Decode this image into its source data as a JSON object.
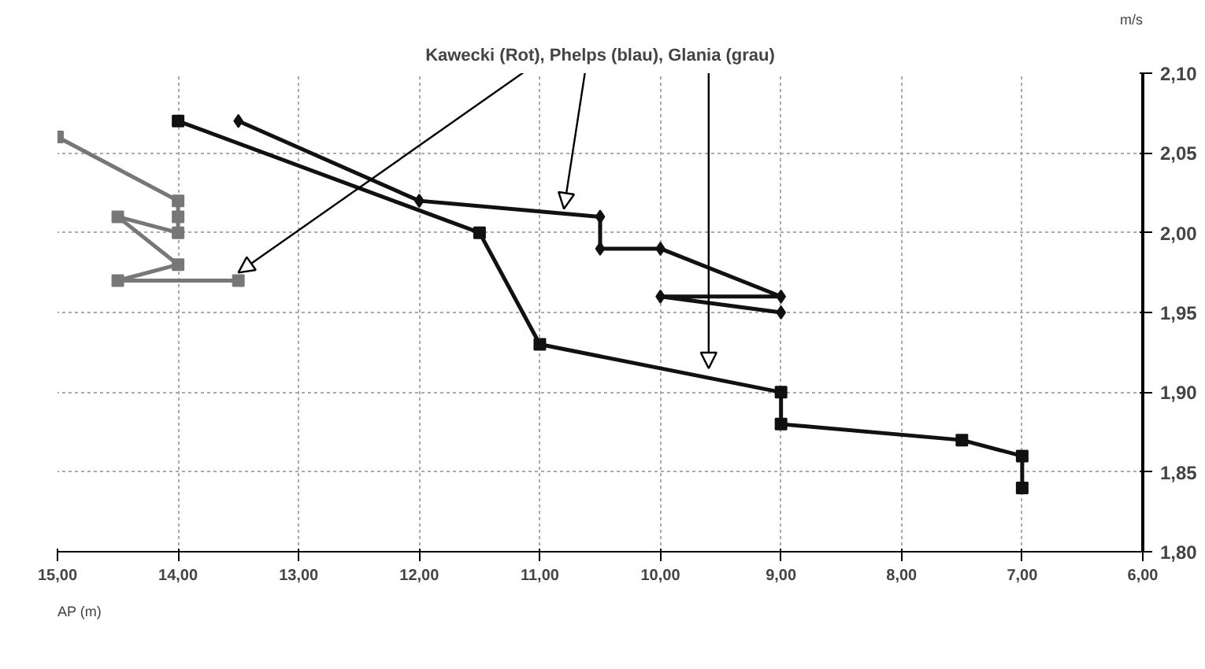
{
  "chart_data": {
    "type": "line",
    "title": "Kawecki (Rot), Phelps (blau), Glania (grau)",
    "xlabel": "AP (m)",
    "ylabel": "m/s",
    "xlim": [
      15,
      6
    ],
    "ylim": [
      1.8,
      2.1
    ],
    "xticks": [
      {
        "value": 15,
        "label": "15,00"
      },
      {
        "value": 14,
        "label": "14,00"
      },
      {
        "value": 13,
        "label": "13,00"
      },
      {
        "value": 12,
        "label": "12,00"
      },
      {
        "value": 11,
        "label": "11,00"
      },
      {
        "value": 10,
        "label": "10,00"
      },
      {
        "value": 9,
        "label": "9,00"
      },
      {
        "value": 8,
        "label": "8,00"
      },
      {
        "value": 7,
        "label": "7,00"
      },
      {
        "value": 6,
        "label": "6,00"
      }
    ],
    "yticks": [
      {
        "value": 1.8,
        "label": "1,80"
      },
      {
        "value": 1.85,
        "label": "1,85"
      },
      {
        "value": 1.9,
        "label": "1,90"
      },
      {
        "value": 1.95,
        "label": "1,95"
      },
      {
        "value": 2.0,
        "label": "2,00"
      },
      {
        "value": 2.05,
        "label": "2,05"
      },
      {
        "value": 2.1,
        "label": "2,10"
      }
    ],
    "grid": true,
    "series": [
      {
        "color": "#777777",
        "marker": "square",
        "x": [
          15,
          14,
          14,
          14,
          14.5,
          14,
          14.5,
          13.5
        ],
        "values": [
          2.06,
          2.02,
          2.01,
          2.0,
          2.01,
          1.98,
          1.97,
          1.97
        ]
      },
      {
        "color": "#111111",
        "marker": "diamond",
        "x": [
          13.5,
          12,
          10.5,
          10.5,
          10,
          9,
          10,
          9
        ],
        "values": [
          2.07,
          2.02,
          2.01,
          1.99,
          1.99,
          1.96,
          1.96,
          1.95
        ]
      },
      {
        "color": "#111111",
        "marker": "square",
        "x": [
          14,
          11.5,
          11,
          9,
          9,
          7.5,
          7,
          7
        ],
        "values": [
          2.07,
          2.0,
          1.93,
          1.9,
          1.88,
          1.87,
          1.86,
          1.84
        ]
      }
    ]
  }
}
